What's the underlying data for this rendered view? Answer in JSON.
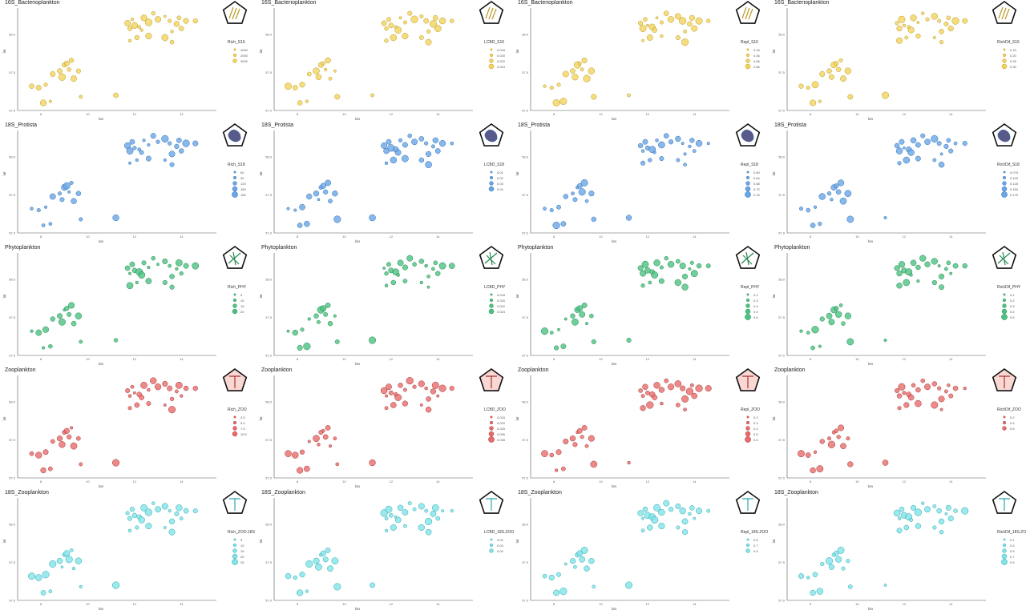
{
  "chart_data": {
    "type": "scatter",
    "xlabel": "lon",
    "ylabel": "lat",
    "x_ticks": [
      "8",
      "10",
      "12",
      "14"
    ],
    "y_ticks": [
      "58.0",
      "57.5",
      "57.0"
    ],
    "points": [
      {
        "x": 11.7,
        "y": 58.15
      },
      {
        "x": 11.9,
        "y": 58.2
      },
      {
        "x": 11.8,
        "y": 58.08
      },
      {
        "x": 12.0,
        "y": 58.12
      },
      {
        "x": 12.2,
        "y": 58.1
      },
      {
        "x": 12.4,
        "y": 58.22
      },
      {
        "x": 12.3,
        "y": 58.06
      },
      {
        "x": 12.6,
        "y": 58.16
      },
      {
        "x": 12.8,
        "y": 58.28
      },
      {
        "x": 13.0,
        "y": 58.2
      },
      {
        "x": 13.3,
        "y": 58.24
      },
      {
        "x": 13.5,
        "y": 58.18
      },
      {
        "x": 13.8,
        "y": 58.14
      },
      {
        "x": 14.0,
        "y": 58.08
      },
      {
        "x": 13.6,
        "y": 58.04
      },
      {
        "x": 13.9,
        "y": 58.22
      },
      {
        "x": 14.2,
        "y": 58.18
      },
      {
        "x": 14.6,
        "y": 58.18
      },
      {
        "x": 12.1,
        "y": 57.96
      },
      {
        "x": 11.8,
        "y": 57.92
      },
      {
        "x": 12.6,
        "y": 57.98
      },
      {
        "x": 13.3,
        "y": 57.96
      },
      {
        "x": 13.6,
        "y": 57.9
      },
      {
        "x": 7.6,
        "y": 57.32
      },
      {
        "x": 7.9,
        "y": 57.3
      },
      {
        "x": 8.2,
        "y": 57.34
      },
      {
        "x": 8.5,
        "y": 57.48
      },
      {
        "x": 8.8,
        "y": 57.52
      },
      {
        "x": 9.0,
        "y": 57.6
      },
      {
        "x": 9.2,
        "y": 57.54
      },
      {
        "x": 8.9,
        "y": 57.44
      },
      {
        "x": 9.4,
        "y": 57.42
      },
      {
        "x": 9.1,
        "y": 57.62
      },
      {
        "x": 9.3,
        "y": 57.66
      },
      {
        "x": 9.6,
        "y": 57.52
      },
      {
        "x": 8.1,
        "y": 57.1
      },
      {
        "x": 8.4,
        "y": 57.12
      },
      {
        "x": 9.7,
        "y": 57.18
      },
      {
        "x": 11.2,
        "y": 57.2
      }
    ],
    "panels": [
      {
        "title": "16S_Bacterioplankton",
        "legend_title": "Rich_S16",
        "legend_items": [
          "1000",
          "2000",
          "3000"
        ],
        "color": "#f3d35c",
        "stroke": "#b89a25"
      },
      {
        "title": "16S_Bacterioplankton",
        "legend_title": "LCBD_S16",
        "legend_items": [
          "0.018",
          "0.020",
          "0.022",
          "0.024"
        ],
        "color": "#f3d35c",
        "stroke": "#b89a25"
      },
      {
        "title": "16S_Bacterioplankton",
        "legend_title": "Repl_S16",
        "legend_items": [
          "0.16",
          "0.46",
          "0.56",
          "0.66"
        ],
        "color": "#f3d35c",
        "stroke": "#b89a25"
      },
      {
        "title": "16S_Bacterioplankton",
        "legend_title": "RichDif_S16",
        "legend_items": [
          "0.15",
          "0.20",
          "0.25",
          "0.30"
        ],
        "color": "#f3d35c",
        "stroke": "#b89a25"
      },
      {
        "title": "18S_Protista",
        "legend_title": "Rich_S18",
        "legend_items": [
          "60",
          "90",
          "120",
          "150",
          "180"
        ],
        "color": "#6aa6e6",
        "stroke": "#2f6fb3"
      },
      {
        "title": "18S_Protista",
        "legend_title": "LCBD_S18",
        "legend_items": [
          "0.01",
          "0.02",
          "0.03",
          "0.04"
        ],
        "color": "#6aa6e6",
        "stroke": "#2f6fb3"
      },
      {
        "title": "18S_Protista",
        "legend_title": "Repl_S18",
        "legend_items": [
          "0.60",
          "0.64",
          "0.68",
          "0.72",
          "0.76"
        ],
        "color": "#6aa6e6",
        "stroke": "#2f6fb3"
      },
      {
        "title": "18S_Protista",
        "legend_title": "RichDif_S18",
        "legend_items": [
          "0.075",
          "0.100",
          "0.125",
          "0.150",
          "0.175"
        ],
        "color": "#6aa6e6",
        "stroke": "#2f6fb3"
      },
      {
        "title": "Phytoplankton",
        "legend_title": "Rich_PHY",
        "legend_items": [
          "5",
          "10",
          "15",
          "20"
        ],
        "color": "#4cc282",
        "stroke": "#23894f"
      },
      {
        "title": "Phytoplankton",
        "legend_title": "LCBD_PHY",
        "legend_items": [
          "0.018",
          "0.020",
          "0.022",
          "0.024"
        ],
        "color": "#4cc282",
        "stroke": "#23894f"
      },
      {
        "title": "Phytoplankton",
        "legend_title": "Repl_PHY",
        "legend_items": [
          "0.2",
          "0.3",
          "0.4",
          "0.5",
          "0.6"
        ],
        "color": "#4cc282",
        "stroke": "#23894f"
      },
      {
        "title": "Phytoplankton",
        "legend_title": "RichDif_PHY",
        "legend_items": [
          "0.1",
          "0.2",
          "0.3",
          "0.4",
          "0.5"
        ],
        "color": "#4cc282",
        "stroke": "#23894f"
      },
      {
        "title": "Zooplankton",
        "legend_title": "Rich_ZOO",
        "legend_items": [
          "2.5",
          "5.0",
          "7.5",
          "10.0"
        ],
        "color": "#e86c6c",
        "stroke": "#a63333"
      },
      {
        "title": "Zooplankton",
        "legend_title": "LCBD_ZOO",
        "legend_items": [
          "0.015",
          "0.020",
          "0.025",
          "0.030",
          "0.035"
        ],
        "color": "#e86c6c",
        "stroke": "#a63333"
      },
      {
        "title": "Zooplankton",
        "legend_title": "Repl_ZOO",
        "legend_items": [
          "0.2",
          "0.3",
          "0.4",
          "0.5",
          "0.6"
        ],
        "color": "#e86c6c",
        "stroke": "#a63333"
      },
      {
        "title": "Zooplankton",
        "legend_title": "RichDif_ZOO",
        "legend_items": [
          "0.2",
          "0.4",
          "0.6"
        ],
        "color": "#e86c6c",
        "stroke": "#a63333"
      },
      {
        "title": "18S_Zooplankton",
        "legend_title": "Rich_ZOO.18S",
        "legend_items": [
          "5",
          "10",
          "15",
          "20",
          "25"
        ],
        "color": "#7fe3e8",
        "stroke": "#2ea6ad"
      },
      {
        "title": "18S_Zooplankton",
        "legend_title": "LCBD_18S.ZOO",
        "legend_items": [
          "0.02",
          "0.03",
          "0.04"
        ],
        "color": "#7fe3e8",
        "stroke": "#2ea6ad"
      },
      {
        "title": "18S_Zooplankton",
        "legend_title": "Repl_18S.ZOO",
        "legend_items": [
          "0.5",
          "0.7",
          "0.9"
        ],
        "color": "#7fe3e8",
        "stroke": "#2ea6ad"
      },
      {
        "title": "18S_Zooplankton",
        "legend_title": "RichDif_18S.ZOO",
        "legend_items": [
          "0.1",
          "0.3",
          "0.5",
          "0.7",
          "0.9"
        ],
        "color": "#7fe3e8",
        "stroke": "#2ea6ad"
      }
    ],
    "xlim": [
      7.0,
      15.5
    ],
    "ylim": [
      57.0,
      58.35
    ],
    "grid": false,
    "legend_placement": "right"
  }
}
